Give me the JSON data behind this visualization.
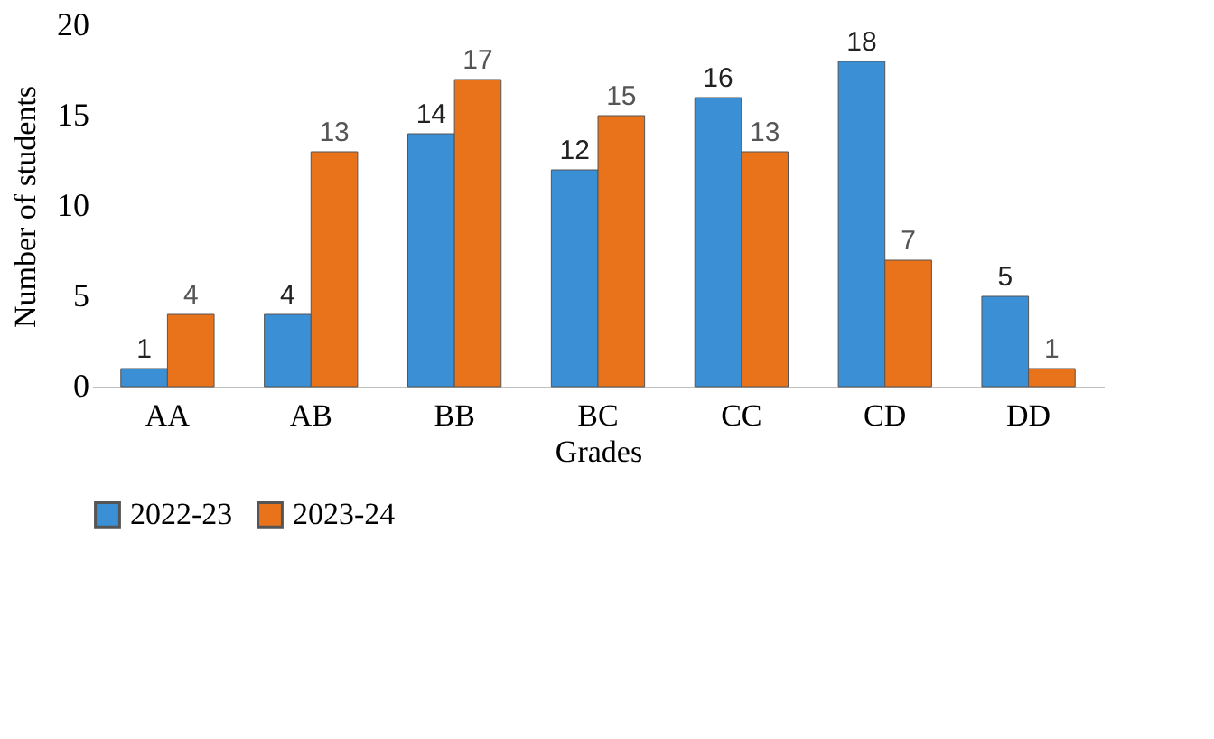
{
  "chart_data": {
    "type": "bar",
    "xlabel": "Grades",
    "ylabel": "Number of students",
    "categories": [
      "AA",
      "AB",
      "BB",
      "BC",
      "CC",
      "CD",
      "DD"
    ],
    "series": [
      {
        "name": "2022-23",
        "color": "#3b8fd4",
        "values": [
          1,
          4,
          14,
          12,
          16,
          18,
          5
        ]
      },
      {
        "name": "2023-24",
        "color": "#e8731a",
        "values": [
          4,
          13,
          17,
          15,
          13,
          7,
          1
        ]
      }
    ],
    "ylim": [
      0,
      20
    ],
    "yticks": [
      0,
      5,
      10,
      15,
      20
    ],
    "grid": false,
    "legend": "bottom",
    "data_labels": true
  }
}
